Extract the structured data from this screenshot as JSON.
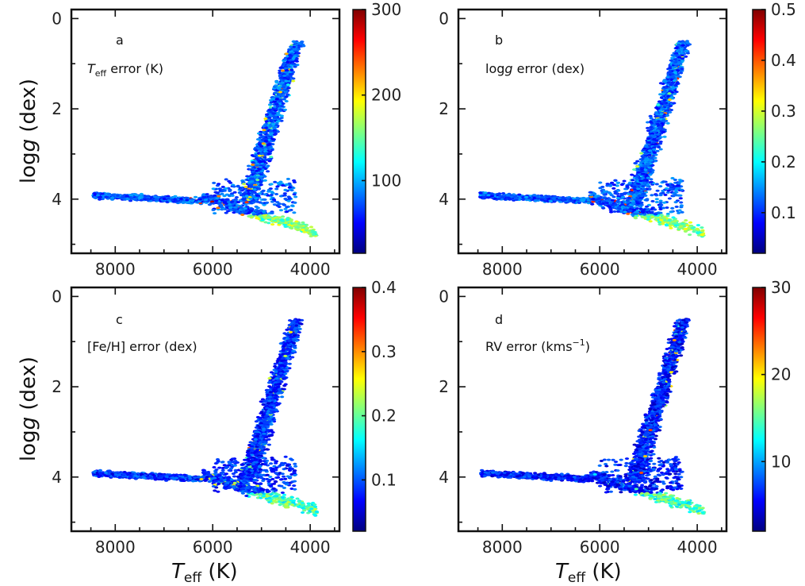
{
  "chart_data": [
    {
      "type": "heatmap",
      "panel_label": "a",
      "title": "T",
      "title_sub": "eff",
      "title_rest": " error (K)",
      "x_ticks": [
        8000,
        6000,
        4000
      ],
      "y_ticks": [
        0,
        2,
        4
      ],
      "xlim": [
        8900,
        3400
      ],
      "ylim": [
        -0.2,
        5.2
      ],
      "colorbar": {
        "min": 15,
        "max": 300,
        "ticks": [
          300,
          200,
          100
        ]
      },
      "hot_level": 0.75,
      "cool_level": 0.12
    },
    {
      "type": "heatmap",
      "panel_label": "b",
      "title": "log",
      "title_italic": "g",
      "title_rest": " error (dex)",
      "x_ticks": [
        8000,
        6000,
        4000
      ],
      "y_ticks": [
        0,
        2,
        4
      ],
      "xlim": [
        8900,
        3400
      ],
      "ylim": [
        -0.2,
        5.2
      ],
      "colorbar": {
        "min": 0.02,
        "max": 0.5,
        "ticks": [
          0.5,
          0.4,
          0.3,
          0.2,
          0.1
        ]
      },
      "hot_level": 0.75,
      "cool_level": 0.12
    },
    {
      "type": "heatmap",
      "panel_label": "c",
      "title": "[Fe/H] error (dex)",
      "x_ticks": [
        8000,
        6000,
        4000
      ],
      "y_ticks": [
        0,
        2,
        4
      ],
      "xlim": [
        8900,
        3400
      ],
      "ylim": [
        -0.2,
        5.2
      ],
      "colorbar": {
        "min": 0.02,
        "max": 0.4,
        "ticks": [
          0.4,
          0.3,
          0.2,
          0.1
        ]
      },
      "hot_level": 0.45,
      "cool_level": 0.08
    },
    {
      "type": "heatmap",
      "panel_label": "d",
      "title": "RV error (kms",
      "title_sup": "−1",
      "title_rest": ")",
      "x_ticks": [
        8000,
        6000,
        4000
      ],
      "y_ticks": [
        0,
        2,
        4
      ],
      "xlim": [
        8900,
        3400
      ],
      "ylim": [
        -0.2,
        5.2
      ],
      "colorbar": {
        "min": 2,
        "max": 30,
        "ticks": [
          30,
          20,
          10
        ]
      },
      "hot_level": 0.3,
      "cool_level": 0.06
    }
  ],
  "axes": {
    "y_label": "log",
    "y_label_italic": "g",
    "y_label_rest": " (dex)",
    "x_label": "T",
    "x_label_sub": "eff",
    "x_label_rest": " (K)"
  },
  "colormap": [
    "#00007f",
    "#0000ff",
    "#007fff",
    "#00ffff",
    "#7fff7f",
    "#ffff00",
    "#ff7f00",
    "#ff0000",
    "#7f0000"
  ]
}
